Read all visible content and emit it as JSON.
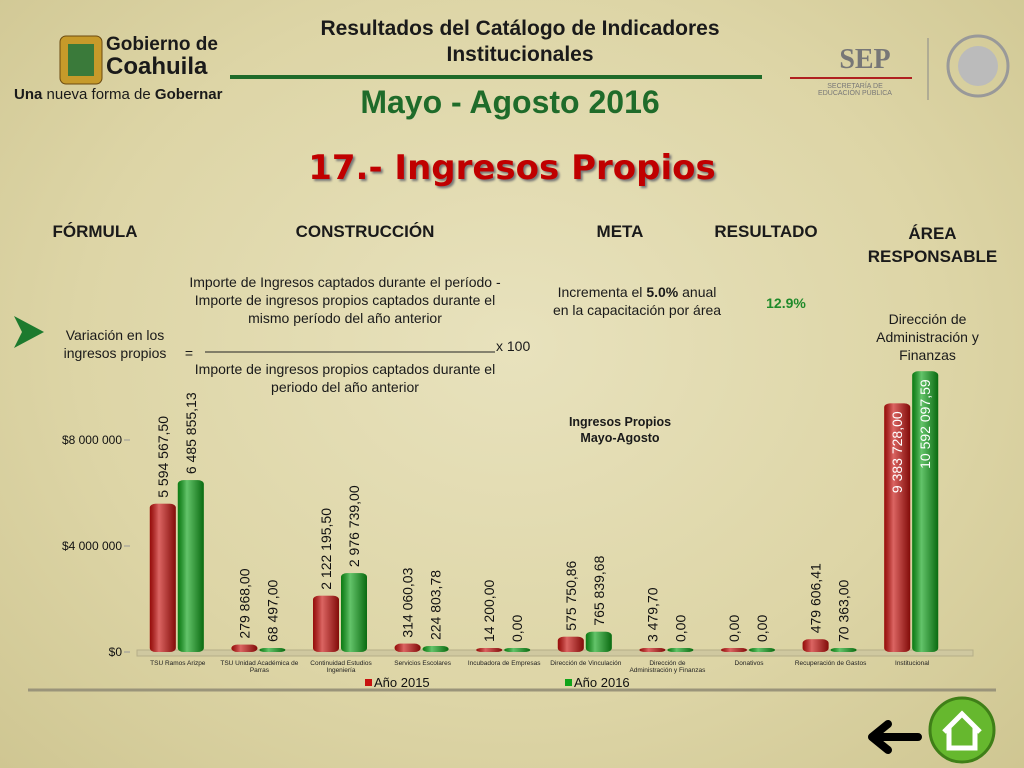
{
  "header": {
    "title": "Resultados del Catálogo de Indicadores Institucionales",
    "period": "Mayo - Agosto 2016",
    "indicator": "17.- Ingresos Propios",
    "gov_logo": {
      "line1": "Gobierno de",
      "line2": "Coahuila",
      "slogan_prefix": "Una",
      "slogan_mid": "nueva forma de",
      "slogan_suffix": "Gobernar"
    },
    "sep_logo": {
      "acronym": "SEP",
      "name": "SECRETARÍA DE EDUCACIÓN PÚBLICA"
    }
  },
  "table": {
    "headers": [
      "FÓRMULA",
      "CONSTRUCCIÓN",
      "META",
      "RESULTADO",
      "ÁREA RESPONSABLE"
    ],
    "formula": "Variación en los ingresos propios",
    "equals": "=",
    "numerator": "Importe de Ingresos captados durante el período - Importe de ingresos propios captados durante el mismo período del año anterior",
    "denominator": "Importe de ingresos propios captados durante el periodo del año anterior",
    "multiplier": "x 100",
    "meta_prefix": "Incrementa el",
    "meta_value": "5.0%",
    "meta_suffix": "anual en la capacitación por área",
    "result": "12.9%",
    "area": "Dirección de Administración y Finanzas"
  },
  "chart_data": {
    "type": "bar",
    "title": "Ingresos Propios",
    "subtitle": "Mayo-Agosto",
    "categories": [
      "TSU Ramos Arizpe",
      "TSU Unidad Académica de Parras",
      "Continuidad Estudios Ingeniería",
      "Servicios Escolares",
      "Incubadora de Empresas",
      "Dirección de Vinculación",
      "Dirección de Administración y Finanzas",
      "Donativos",
      "Recuperación de Gastos",
      "Institucional"
    ],
    "series": [
      {
        "name": "Año 2015",
        "color": "#c8120e",
        "values": [
          5594567.5,
          279868.0,
          2122195.5,
          314060.03,
          14200.0,
          575750.86,
          3479.7,
          0,
          479606.41,
          9383728.0
        ],
        "value_labels": [
          "5 594 567,50",
          "279 868,00",
          "2 122 195,50",
          "314 060,03",
          "14 200,00",
          "575 750,86",
          "3 479,70",
          "0,00",
          "479 606,41",
          "9 383 728,00"
        ]
      },
      {
        "name": "Año 2016",
        "color": "#10a41a",
        "values": [
          6485855.13,
          68497.0,
          2976739.0,
          224803.78,
          0,
          765839.68,
          0,
          0,
          70363.0,
          10592097.59
        ],
        "value_labels": [
          "6 485 855,13",
          "68 497,00",
          "2 976 739,00",
          "224 803,78",
          "0,00",
          "765 839,68",
          "0,00",
          "0,00",
          "70 363,00",
          "10 592 097,59"
        ]
      }
    ],
    "ylim": [
      0,
      10000000
    ],
    "yticks": [
      {
        "value": 0,
        "label": "$0"
      },
      {
        "value": 4000000,
        "label": "$4 000 000"
      },
      {
        "value": 8000000,
        "label": "$8 000 000"
      }
    ],
    "grid": false,
    "legend": "bottom"
  }
}
